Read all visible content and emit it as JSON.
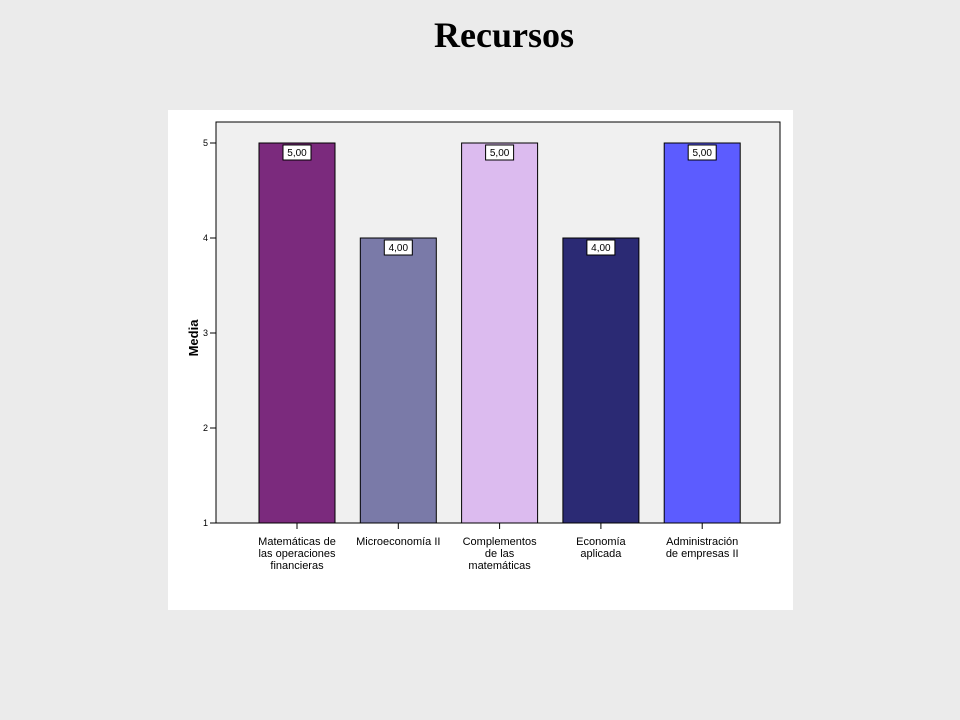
{
  "slide": {
    "title": "Recursos"
  },
  "chart_data": {
    "type": "bar",
    "title": "",
    "xlabel": "",
    "ylabel": "Media",
    "ylim": [
      1,
      5
    ],
    "yticks": [
      "1",
      "2",
      "3",
      "4",
      "5"
    ],
    "categories": [
      [
        "Matemáticas de",
        "las operaciones",
        "financieras"
      ],
      [
        "Microeconomía II"
      ],
      [
        "Complementos",
        "de las",
        "matemáticas"
      ],
      [
        "Economía",
        "aplicada"
      ],
      [
        "Administración",
        "de empresas II"
      ]
    ],
    "values": [
      5.0,
      4.0,
      5.0,
      4.0,
      5.0
    ],
    "value_labels": [
      "5,00",
      "4,00",
      "5,00",
      "4,00",
      "5,00"
    ],
    "colors": [
      "#7b2a7d",
      "#7a7aa8",
      "#dcbbef",
      "#2b2a74",
      "#5c5cff"
    ],
    "grid": false,
    "legend": "none",
    "plot_background": "#f0f0f0"
  }
}
